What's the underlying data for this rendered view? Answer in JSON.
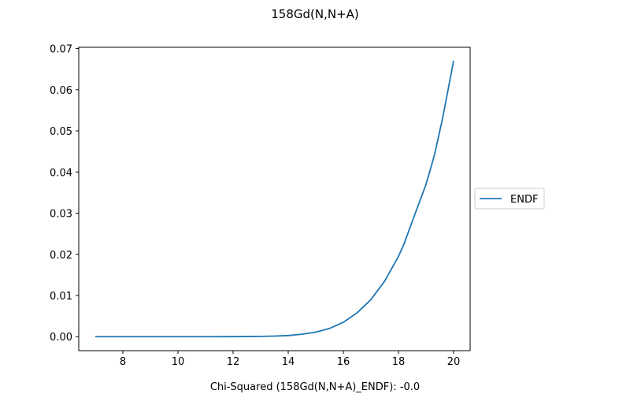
{
  "chart_data": {
    "type": "line",
    "title": "158Gd(N,N+A)",
    "xlabel": "Chi-Squared (158Gd(N,N+A)_ENDF): -0.0",
    "ylabel": "",
    "xlim": [
      6.4,
      20.6
    ],
    "ylim": [
      -0.0034,
      0.0703
    ],
    "xticks": [
      8,
      10,
      12,
      14,
      16,
      18,
      20
    ],
    "yticks": [
      0.0,
      0.01,
      0.02,
      0.03,
      0.04,
      0.05,
      0.06,
      0.07
    ],
    "ytick_labels": [
      "0.00",
      "0.01",
      "0.02",
      "0.03",
      "0.04",
      "0.05",
      "0.06",
      "0.07"
    ],
    "grid": false,
    "legend_position": "center-right-outside",
    "series": [
      {
        "name": "ENDF",
        "color": "#1f77b4",
        "x": [
          7.0,
          8.0,
          9.0,
          10.0,
          11.0,
          12.0,
          12.5,
          13.0,
          13.5,
          14.0,
          14.5,
          15.0,
          15.5,
          16.0,
          16.5,
          17.0,
          17.5,
          18.0,
          18.2,
          18.5,
          19.0,
          19.3,
          19.6,
          20.0
        ],
        "y": [
          0.0,
          0.0,
          0.0,
          0.0,
          0.0,
          1e-05,
          3e-05,
          7e-05,
          0.00014,
          0.00027,
          0.0006,
          0.0011,
          0.002,
          0.0035,
          0.0058,
          0.009,
          0.0135,
          0.0195,
          0.0225,
          0.028,
          0.037,
          0.044,
          0.053,
          0.067
        ]
      }
    ]
  }
}
